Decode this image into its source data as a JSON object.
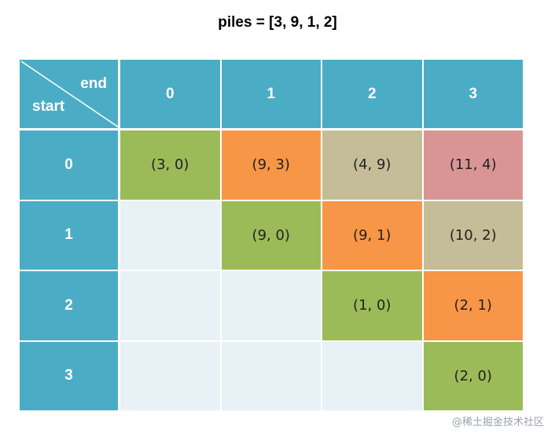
{
  "title": "piles = [3, 9, 1, 2]",
  "corner": {
    "end_label": "end",
    "start_label": "start"
  },
  "column_headers": [
    "0",
    "1",
    "2",
    "3"
  ],
  "row_headers": [
    "0",
    "1",
    "2",
    "3"
  ],
  "cells": [
    [
      {
        "text": "(3, 0)",
        "color": "#9bbb59"
      },
      {
        "text": "(9, 3)",
        "color": "#f79646"
      },
      {
        "text": "(4, 9)",
        "color": "#c4bd97"
      },
      {
        "text": "(11, 4)",
        "color": "#d99594"
      }
    ],
    [
      {
        "text": "",
        "color": "#e8f1f5"
      },
      {
        "text": "(9, 0)",
        "color": "#9bbb59"
      },
      {
        "text": "(9, 1)",
        "color": "#f79646"
      },
      {
        "text": "(10, 2)",
        "color": "#c4bd97"
      }
    ],
    [
      {
        "text": "",
        "color": "#e8f1f5"
      },
      {
        "text": "",
        "color": "#e8f1f5"
      },
      {
        "text": "(1, 0)",
        "color": "#9bbb59"
      },
      {
        "text": "(2, 1)",
        "color": "#f79646"
      }
    ],
    [
      {
        "text": "",
        "color": "#e8f1f5"
      },
      {
        "text": "",
        "color": "#e8f1f5"
      },
      {
        "text": "",
        "color": "#e8f1f5"
      },
      {
        "text": "(2, 0)",
        "color": "#9bbb59"
      }
    ]
  ],
  "colors": {
    "header": "#4bacc6",
    "empty": "#e8f1f5"
  },
  "watermark": "@稀土掘金技术社区"
}
